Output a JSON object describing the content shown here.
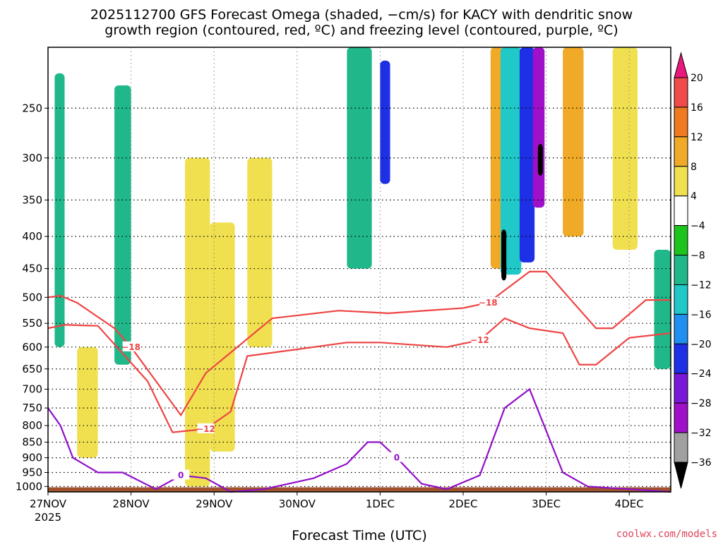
{
  "chart_data": {
    "type": "heatmap",
    "title_lines": [
      "2025112700 GFS Forecast Omega (shaded, −cm/s) for KACY with dendritic snow",
      "growth region (contoured, red, ºC) and freezing level (contoured, purple, ºC)"
    ],
    "xlabel": "Forecast Time (UTC)",
    "x_ticks": [
      "27NOV",
      "28NOV",
      "29NOV",
      "30NOV",
      "1DEC",
      "2DEC",
      "3DEC",
      "4DEC"
    ],
    "x_year": "2025",
    "x_range_days": [
      0,
      7.5
    ],
    "y_ticks": [
      250,
      300,
      350,
      400,
      450,
      500,
      550,
      600,
      650,
      700,
      750,
      800,
      850,
      900,
      950,
      1000
    ],
    "y_range_hpa": [
      200,
      1020
    ],
    "colorbar": {
      "labels": [
        "20",
        "16",
        "12",
        "8",
        "4",
        "−4",
        "−8",
        "−12",
        "−16",
        "−20",
        "−24",
        "−28",
        "−32",
        "−36"
      ],
      "colors": [
        "#e8197a",
        "#f04a4a",
        "#f07a20",
        "#f0aa28",
        "#f0e050",
        "#ffffff",
        "#1ec41e",
        "#20b88a",
        "#20c8c8",
        "#2090f0",
        "#1e30e6",
        "#7a18d8",
        "#a010c8",
        "#a0a0a0",
        "#000000"
      ]
    },
    "omega_regions": [
      {
        "x": [
          0.08,
          0.2
        ],
        "p": [
          220,
          600
        ],
        "value": -8
      },
      {
        "x": [
          0.35,
          0.6
        ],
        "p": [
          600,
          900
        ],
        "value": 6
      },
      {
        "x": [
          0.8,
          1.0
        ],
        "p": [
          230,
          640
        ],
        "value": -8
      },
      {
        "x": [
          1.65,
          1.95
        ],
        "p": [
          300,
          1000
        ],
        "value": 5
      },
      {
        "x": [
          1.95,
          2.25
        ],
        "p": [
          380,
          880
        ],
        "value": 7
      },
      {
        "x": [
          2.4,
          2.7
        ],
        "p": [
          300,
          600
        ],
        "value": 5
      },
      {
        "x": [
          3.6,
          3.9
        ],
        "p": [
          200,
          450
        ],
        "value": -8
      },
      {
        "x": [
          4.0,
          4.12
        ],
        "p": [
          210,
          330
        ],
        "value": -20
      },
      {
        "x": [
          5.33,
          5.48
        ],
        "p": [
          200,
          450
        ],
        "value": 10
      },
      {
        "x": [
          5.45,
          5.7
        ],
        "p": [
          200,
          460
        ],
        "value": -14
      },
      {
        "x": [
          5.68,
          5.86
        ],
        "p": [
          200,
          440
        ],
        "value": -22
      },
      {
        "x": [
          5.84,
          5.98
        ],
        "p": [
          200,
          360
        ],
        "value": -28
      },
      {
        "x": [
          5.9,
          5.96
        ],
        "p": [
          285,
          320
        ],
        "value": -36
      },
      {
        "x": [
          5.46,
          5.52
        ],
        "p": [
          390,
          470
        ],
        "value": -36
      },
      {
        "x": [
          6.2,
          6.45
        ],
        "p": [
          200,
          400
        ],
        "value": 8
      },
      {
        "x": [
          6.8,
          7.1
        ],
        "p": [
          200,
          420
        ],
        "value": 5
      },
      {
        "x": [
          7.3,
          7.5
        ],
        "p": [
          420,
          650
        ],
        "value": -8
      }
    ],
    "dgz_contours": [
      {
        "label": "-18",
        "x": [
          0,
          0.15,
          0.35,
          0.8,
          1.0,
          1.6,
          1.9,
          2.7,
          3.5,
          4.1,
          5.0,
          5.3,
          5.8,
          6.0,
          6.3,
          6.6,
          6.8,
          7.2,
          7.5
        ],
        "p": [
          500,
          497,
          510,
          560,
          600,
          770,
          660,
          540,
          525,
          530,
          520,
          510,
          455,
          455,
          505,
          560,
          560,
          505,
          505
        ]
      },
      {
        "label": "-12",
        "x": [
          0,
          0.2,
          0.6,
          1.2,
          1.5,
          1.9,
          2.2,
          2.4,
          3.0,
          3.6,
          4.0,
          4.8,
          5.2,
          5.5,
          5.8,
          6.2,
          6.4,
          6.6,
          7.0,
          7.5
        ],
        "p": [
          560,
          553,
          555,
          680,
          820,
          810,
          760,
          620,
          605,
          590,
          590,
          600,
          585,
          540,
          560,
          570,
          640,
          640,
          580,
          570
        ]
      }
    ],
    "freezing_level_contours": [
      {
        "label": "0",
        "x": [
          0,
          0.15,
          0.3,
          0.6,
          0.9,
          1.3,
          1.6,
          1.9,
          2.2,
          2.6,
          3.2,
          3.6,
          3.85,
          4.0,
          4.2,
          4.5,
          4.8,
          5.2,
          5.5,
          5.8,
          6.2,
          6.5,
          7.0,
          7.5
        ],
        "p": [
          750,
          800,
          900,
          950,
          950,
          1010,
          960,
          970,
          1020,
          1010,
          970,
          920,
          850,
          850,
          900,
          990,
          1010,
          960,
          750,
          700,
          950,
          1000,
          1010,
          1020
        ]
      }
    ],
    "credit": "coolwx.com/models"
  }
}
